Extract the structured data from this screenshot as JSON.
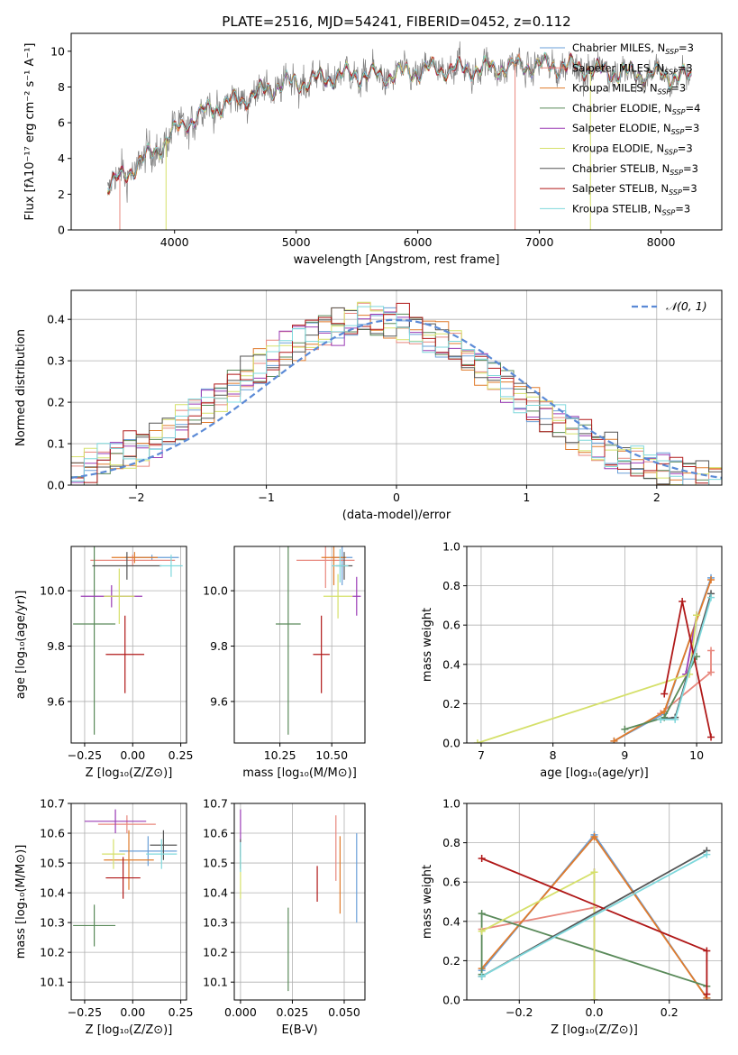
{
  "figure_title": "PLATE=2516, MJD=54241, FIBERID=0452, z=0.112",
  "colors": {
    "chabrier_miles": "#6a9fd8",
    "salpeter_miles": "#e8877d",
    "kroupa_miles": "#e07b2c",
    "chabrier_elodie": "#5a8a5a",
    "salpeter_elodie": "#9a3bb5",
    "kroupa_elodie": "#d5e06a",
    "chabrier_stelib": "#555555",
    "salpeter_stelib": "#b01818",
    "kroupa_stelib": "#7fd8dc",
    "normal_curve": "#5b8ad6",
    "spectrum_data": "#808080"
  },
  "chart_data": [
    {
      "type": "line",
      "id": "spectrum",
      "xlabel": "wavelength [Angstrom, rest frame]",
      "ylabel": "Flux [fλ10⁻¹⁷ erg cm⁻² s⁻¹ A⁻¹]",
      "xlim": [
        3150,
        8500
      ],
      "ylim": [
        0,
        11
      ],
      "xticks": [
        "4000",
        "5000",
        "6000",
        "7000",
        "8000"
      ],
      "yticks": [
        "0",
        "2",
        "4",
        "6",
        "8",
        "10"
      ],
      "legend_position": "top-right",
      "legend": [
        {
          "label": "Chabrier MILES, N",
          "sub": "SSP",
          "suffix": "=3",
          "color_key": "chabrier_miles"
        },
        {
          "label": "Salpeter MILES, N",
          "sub": "SSP",
          "suffix": "=3",
          "color_key": "salpeter_miles"
        },
        {
          "label": "Kroupa MILES, N",
          "sub": "SSP",
          "suffix": "=3",
          "color_key": "kroupa_miles"
        },
        {
          "label": "Chabrier ELODIE, N",
          "sub": "SSP",
          "suffix": "=4",
          "color_key": "chabrier_elodie"
        },
        {
          "label": "Salpeter ELODIE, N",
          "sub": "SSP",
          "suffix": "=3",
          "color_key": "salpeter_elodie"
        },
        {
          "label": "Kroupa ELODIE, N",
          "sub": "SSP",
          "suffix": "=3",
          "color_key": "kroupa_elodie"
        },
        {
          "label": "Chabrier STELIB, N",
          "sub": "SSP",
          "suffix": "=3",
          "color_key": "chabrier_stelib"
        },
        {
          "label": "Salpeter STELIB, N",
          "sub": "SSP",
          "suffix": "=3",
          "color_key": "salpeter_stelib"
        },
        {
          "label": "Kroupa STELIB, N",
          "sub": "SSP",
          "suffix": "=3",
          "color_key": "kroupa_stelib"
        }
      ],
      "continuum": {
        "x": [
          3450,
          3600,
          3700,
          3850,
          3950,
          4100,
          4300,
          4500,
          4700,
          4900,
          5100,
          5300,
          5500,
          5700,
          5900,
          6100,
          6300,
          6500,
          6700,
          6900,
          7100,
          7300,
          7500,
          7700,
          7900,
          8100,
          8250
        ],
        "y": [
          2.6,
          3.0,
          3.8,
          4.4,
          5.2,
          6.0,
          6.8,
          7.2,
          7.7,
          8.2,
          8.3,
          8.6,
          8.7,
          8.6,
          8.8,
          9.0,
          9.0,
          9.0,
          9.1,
          9.2,
          9.2,
          9.1,
          8.9,
          8.8,
          8.7,
          8.6,
          8.5
        ]
      },
      "spikes": [
        {
          "x": 3550,
          "ylow": 0
        },
        {
          "x": 3930,
          "ylow": 0
        },
        {
          "x": 6800,
          "ylow": 0
        },
        {
          "x": 7420,
          "ylow": 0
        }
      ]
    },
    {
      "type": "line",
      "id": "residual-histogram",
      "xlabel": "(data-model)/error",
      "ylabel": "Normed distribution",
      "xlim": [
        -2.5,
        2.5
      ],
      "ylim": [
        0,
        0.47
      ],
      "xticks": [
        "−2",
        "−1",
        "0",
        "1",
        "2"
      ],
      "yticks": [
        "0.0",
        "0.1",
        "0.2",
        "0.3",
        "0.4"
      ],
      "legend_position": "top-right",
      "normal_label": "𝒩(0, 1)",
      "bin_width": 0.1
    },
    {
      "type": "scatter",
      "id": "age-vs-metallicity",
      "xlabel": "Z [log₁₀(Z/Z⊙)]",
      "ylabel": "age  [log₁₀(age/yr)]",
      "xlim": [
        -0.32,
        0.28
      ],
      "ylim": [
        9.45,
        10.16
      ],
      "xticks": [
        "−0.25",
        "0.00",
        "0.25"
      ],
      "yticks": [
        "9.6",
        "9.8",
        "10.0"
      ],
      "points": [
        {
          "x": 0.1,
          "y": 10.12,
          "xerr": 0.14,
          "yerr": 0.01,
          "color_key": "chabrier_miles"
        },
        {
          "x": -0.0,
          "y": 10.11,
          "xerr": 0.22,
          "yerr": 0.02,
          "color_key": "salpeter_miles"
        },
        {
          "x": 0.01,
          "y": 10.12,
          "xerr": 0.12,
          "yerr": 0.02,
          "color_key": "kroupa_miles"
        },
        {
          "x": -0.2,
          "y": 9.88,
          "xerr": 0.11,
          "yerr": 0.4,
          "color_key": "chabrier_elodie"
        },
        {
          "x": -0.11,
          "y": 9.98,
          "xerr": 0.16,
          "yerr": 0.04,
          "color_key": "salpeter_elodie"
        },
        {
          "x": -0.07,
          "y": 9.98,
          "xerr": 0.08,
          "yerr": 0.1,
          "color_key": "kroupa_elodie"
        },
        {
          "x": -0.03,
          "y": 10.09,
          "xerr": 0.18,
          "yerr": 0.05,
          "color_key": "chabrier_stelib"
        },
        {
          "x": -0.04,
          "y": 9.77,
          "xerr": 0.1,
          "yerr": 0.14,
          "color_key": "salpeter_stelib"
        },
        {
          "x": 0.2,
          "y": 10.09,
          "xerr": 0.06,
          "yerr": 0.04,
          "color_key": "kroupa_stelib"
        }
      ]
    },
    {
      "type": "scatter",
      "id": "age-vs-mass",
      "xlabel": "mass [log₁₀(M/M⊙)]",
      "ylabel": "",
      "xlim": [
        10.03,
        10.66
      ],
      "ylim": [
        9.45,
        10.16
      ],
      "xticks": [
        "10.25",
        "10.50"
      ],
      "yticks": [
        "9.6",
        "9.8",
        "10.0"
      ],
      "points": [
        {
          "x": 10.55,
          "y": 10.12,
          "xerr": 0.05,
          "yerr": 0.1,
          "color_key": "chabrier_miles"
        },
        {
          "x": 10.47,
          "y": 10.11,
          "xerr": 0.14,
          "yerr": 0.1,
          "color_key": "salpeter_miles"
        },
        {
          "x": 10.51,
          "y": 10.12,
          "xerr": 0.06,
          "yerr": 0.1,
          "color_key": "kroupa_miles"
        },
        {
          "x": 10.29,
          "y": 9.88,
          "xerr": 0.06,
          "yerr": 0.4,
          "color_key": "chabrier_elodie"
        },
        {
          "x": 10.62,
          "y": 9.98,
          "xerr": 0.02,
          "yerr": 0.07,
          "color_key": "salpeter_elodie"
        },
        {
          "x": 10.53,
          "y": 9.98,
          "xerr": 0.07,
          "yerr": 0.08,
          "color_key": "kroupa_elodie"
        },
        {
          "x": 10.56,
          "y": 10.09,
          "xerr": 0.04,
          "yerr": 0.05,
          "color_key": "chabrier_stelib"
        },
        {
          "x": 10.45,
          "y": 9.77,
          "xerr": 0.04,
          "yerr": 0.14,
          "color_key": "salpeter_stelib"
        },
        {
          "x": 10.54,
          "y": 10.09,
          "xerr": 0.04,
          "yerr": 0.06,
          "color_key": "kroupa_stelib"
        }
      ]
    },
    {
      "type": "line",
      "id": "mass-weight-vs-age",
      "xlabel": "age  [log₁₀(age/yr)]",
      "ylabel": "mass weight",
      "xlim": [
        6.8,
        10.35
      ],
      "ylim": [
        0,
        1
      ],
      "xticks": [
        "7",
        "8",
        "9",
        "10"
      ],
      "yticks": [
        "0.0",
        "0.2",
        "0.4",
        "0.6",
        "0.8",
        "1.0"
      ],
      "series": [
        {
          "color_key": "chabrier_miles",
          "x": [
            8.85,
            9.55,
            10.2
          ],
          "y": [
            0.01,
            0.15,
            0.84
          ]
        },
        {
          "color_key": "salpeter_miles",
          "x": [
            9.5,
            10.2,
            10.2
          ],
          "y": [
            0.15,
            0.36,
            0.47
          ]
        },
        {
          "color_key": "kroupa_miles",
          "x": [
            8.85,
            9.55,
            10.2
          ],
          "y": [
            0.01,
            0.16,
            0.83
          ]
        },
        {
          "color_key": "chabrier_elodie",
          "x": [
            9.0,
            9.55,
            10.0
          ],
          "y": [
            0.07,
            0.13,
            0.44
          ]
        },
        {
          "color_key": "salpeter_elodie",
          "x": [
            9.85,
            10.0
          ],
          "y": [
            0.35,
            0.65
          ]
        },
        {
          "color_key": "kroupa_elodie",
          "x": [
            6.95,
            9.9,
            10.0
          ],
          "y": [
            0.0,
            0.35,
            0.65
          ]
        },
        {
          "color_key": "chabrier_stelib",
          "x": [
            9.5,
            9.7,
            10.2
          ],
          "y": [
            0.12,
            0.13,
            0.76
          ]
        },
        {
          "color_key": "salpeter_stelib",
          "x": [
            9.55,
            9.8,
            10.2
          ],
          "y": [
            0.25,
            0.72,
            0.03
          ]
        },
        {
          "color_key": "kroupa_stelib",
          "x": [
            9.5,
            9.7,
            10.2
          ],
          "y": [
            0.12,
            0.12,
            0.74
          ]
        }
      ]
    },
    {
      "type": "scatter",
      "id": "mass-vs-metallicity",
      "xlabel": "Z [log₁₀(Z/Z⊙)]",
      "ylabel": "mass [log₁₀(M/M⊙)]",
      "xlim": [
        -0.32,
        0.28
      ],
      "ylim": [
        10.04,
        10.7
      ],
      "xticks": [
        "−0.25",
        "0.00",
        "0.25"
      ],
      "yticks": [
        "10.1",
        "10.2",
        "10.3",
        "10.4",
        "10.5",
        "10.6",
        "10.7"
      ],
      "points": [
        {
          "x": 0.08,
          "y": 10.54,
          "xerr": 0.15,
          "yerr": 0.05,
          "color_key": "chabrier_miles"
        },
        {
          "x": -0.03,
          "y": 10.63,
          "xerr": 0.15,
          "yerr": 0.03,
          "color_key": "salpeter_miles"
        },
        {
          "x": -0.02,
          "y": 10.51,
          "xerr": 0.13,
          "yerr": 0.1,
          "color_key": "kroupa_miles"
        },
        {
          "x": -0.2,
          "y": 10.29,
          "xerr": 0.11,
          "yerr": 0.07,
          "color_key": "chabrier_elodie"
        },
        {
          "x": -0.09,
          "y": 10.64,
          "xerr": 0.16,
          "yerr": 0.04,
          "color_key": "salpeter_elodie"
        },
        {
          "x": -0.1,
          "y": 10.53,
          "xerr": 0.06,
          "yerr": 0.05,
          "color_key": "kroupa_elodie"
        },
        {
          "x": 0.16,
          "y": 10.56,
          "xerr": 0.07,
          "yerr": 0.05,
          "color_key": "chabrier_stelib"
        },
        {
          "x": -0.05,
          "y": 10.45,
          "xerr": 0.09,
          "yerr": 0.07,
          "color_key": "salpeter_stelib"
        },
        {
          "x": 0.15,
          "y": 10.53,
          "xerr": 0.08,
          "yerr": 0.05,
          "color_key": "kroupa_stelib"
        }
      ]
    },
    {
      "type": "scatter",
      "id": "mass-vs-ebv",
      "xlabel": "E(B-V)",
      "ylabel": "",
      "xlim": [
        -0.003,
        0.06
      ],
      "ylim": [
        10.04,
        10.7
      ],
      "xticks": [
        "0.000",
        "0.025",
        "0.050"
      ],
      "yticks": [
        "10.1",
        "10.2",
        "10.3",
        "10.4",
        "10.5",
        "10.6",
        "10.7"
      ],
      "points": [
        {
          "x": 0.056,
          "y": 10.45,
          "xerr": 0,
          "yerr": 0.15,
          "color_key": "chabrier_miles"
        },
        {
          "x": 0.046,
          "y": 10.55,
          "xerr": 0,
          "yerr": 0.11,
          "color_key": "salpeter_miles"
        },
        {
          "x": 0.048,
          "y": 10.46,
          "xerr": 0,
          "yerr": 0.13,
          "color_key": "kroupa_miles"
        },
        {
          "x": 0.023,
          "y": 10.21,
          "xerr": 0,
          "yerr": 0.14,
          "color_key": "chabrier_elodie"
        },
        {
          "x": 0.0,
          "y": 10.6,
          "xerr": 0,
          "yerr": 0.08,
          "color_key": "salpeter_elodie"
        },
        {
          "x": 0.0,
          "y": 10.47,
          "xerr": 0,
          "yerr": 0.09,
          "color_key": "kroupa_elodie"
        },
        {
          "x": 0.0,
          "y": 10.53,
          "xerr": 0,
          "yerr": 0.05,
          "color_key": "chabrier_stelib"
        },
        {
          "x": 0.037,
          "y": 10.43,
          "xerr": 0,
          "yerr": 0.06,
          "color_key": "salpeter_stelib"
        },
        {
          "x": 0.0,
          "y": 10.52,
          "xerr": 0,
          "yerr": 0.05,
          "color_key": "kroupa_stelib"
        }
      ]
    },
    {
      "type": "line",
      "id": "mass-weight-vs-metallicity",
      "xlabel": "Z [log₁₀(Z/Z⊙)]",
      "ylabel": "mass weight",
      "xlim": [
        -0.34,
        0.34
      ],
      "ylim": [
        0,
        1
      ],
      "xticks": [
        "−0.2",
        "0.0",
        "0.2"
      ],
      "yticks": [
        "0.0",
        "0.2",
        "0.4",
        "0.6",
        "0.8",
        "1.0"
      ],
      "series": [
        {
          "color_key": "chabrier_miles",
          "x": [
            -0.3,
            0.0,
            0.3
          ],
          "y": [
            0.15,
            0.84,
            0.01
          ]
        },
        {
          "color_key": "salpeter_miles",
          "x": [
            -0.3,
            0.0
          ],
          "y": [
            0.36,
            0.47
          ]
        },
        {
          "color_key": "kroupa_miles",
          "x": [
            -0.3,
            0.0,
            0.3
          ],
          "y": [
            0.16,
            0.83,
            0.01
          ]
        },
        {
          "color_key": "chabrier_elodie",
          "x": [
            -0.3,
            -0.3,
            0.3
          ],
          "y": [
            0.13,
            0.44,
            0.07
          ]
        },
        {
          "color_key": "salpeter_elodie",
          "x": [
            0.0,
            0.0
          ],
          "y": [
            0.0,
            0.65
          ]
        },
        {
          "color_key": "kroupa_elodie",
          "x": [
            -0.3,
            0.0,
            0.0
          ],
          "y": [
            0.35,
            0.65,
            0.0
          ]
        },
        {
          "color_key": "chabrier_stelib",
          "x": [
            -0.3,
            0.3
          ],
          "y": [
            0.12,
            0.76
          ]
        },
        {
          "color_key": "salpeter_stelib",
          "x": [
            -0.3,
            0.3,
            0.3
          ],
          "y": [
            0.72,
            0.25,
            0.03
          ]
        },
        {
          "color_key": "kroupa_stelib",
          "x": [
            -0.3,
            0.3
          ],
          "y": [
            0.12,
            0.74
          ]
        }
      ]
    }
  ]
}
